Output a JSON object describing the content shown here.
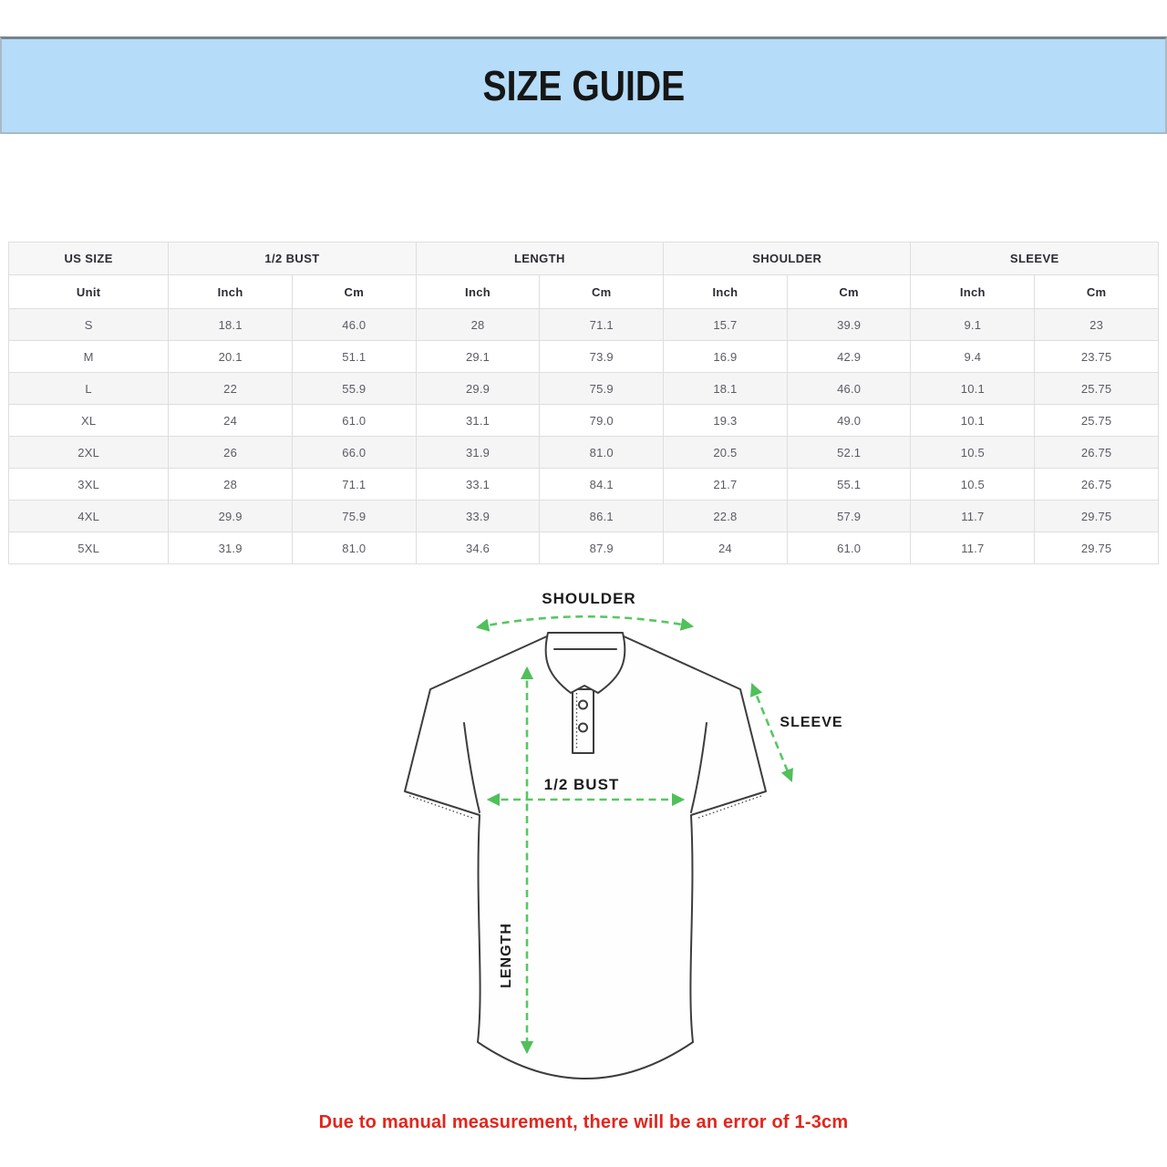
{
  "banner": {
    "title": "SIZE GUIDE",
    "bg_color": "#b5dcf8"
  },
  "table": {
    "group_headers": [
      "US SIZE",
      "1/2 BUST",
      "LENGTH",
      "SHOULDER",
      "SLEEVE"
    ],
    "unit_headers": [
      "Unit",
      "Inch",
      "Cm",
      "Inch",
      "Cm",
      "Inch",
      "Cm",
      "Inch",
      "Cm"
    ],
    "rows": [
      [
        "S",
        "18.1",
        "46.0",
        "28",
        "71.1",
        "15.7",
        "39.9",
        "9.1",
        "23"
      ],
      [
        "M",
        "20.1",
        "51.1",
        "29.1",
        "73.9",
        "16.9",
        "42.9",
        "9.4",
        "23.75"
      ],
      [
        "L",
        "22",
        "55.9",
        "29.9",
        "75.9",
        "18.1",
        "46.0",
        "10.1",
        "25.75"
      ],
      [
        "XL",
        "24",
        "61.0",
        "31.1",
        "79.0",
        "19.3",
        "49.0",
        "10.1",
        "25.75"
      ],
      [
        "2XL",
        "26",
        "66.0",
        "31.9",
        "81.0",
        "20.5",
        "52.1",
        "10.5",
        "26.75"
      ],
      [
        "3XL",
        "28",
        "71.1",
        "33.1",
        "84.1",
        "21.7",
        "55.1",
        "10.5",
        "26.75"
      ],
      [
        "4XL",
        "29.9",
        "75.9",
        "33.9",
        "86.1",
        "22.8",
        "57.9",
        "11.7",
        "29.75"
      ],
      [
        "5XL",
        "31.9",
        "81.0",
        "34.6",
        "87.9",
        "24",
        "61.0",
        "11.7",
        "29.75"
      ]
    ]
  },
  "diagram": {
    "labels": {
      "shoulder": "SHOULDER",
      "sleeve": "SLEEVE",
      "half_bust": "1/2 BUST",
      "length": "LENGTH"
    },
    "arrow_color": "#58c764",
    "outline_color": "#3d3d3d"
  },
  "footnote": {
    "text": "Due to manual measurement, there will be an error of 1-3cm",
    "color": "#e3251c"
  }
}
